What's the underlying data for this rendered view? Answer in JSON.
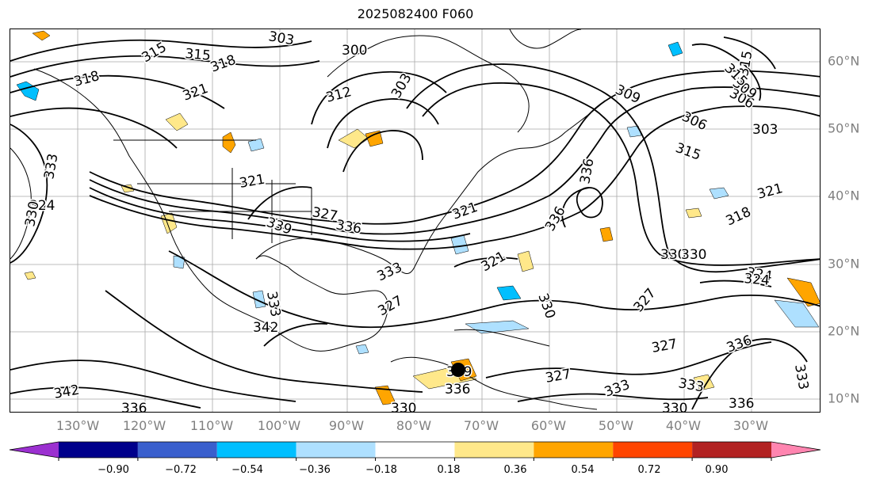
{
  "title": "2025082400 F060",
  "lon_labels": [
    "130°W",
    "120°W",
    "110°W",
    "100°W",
    "90°W",
    "80°W",
    "70°W",
    "60°W",
    "50°W",
    "40°W",
    "30°W"
  ],
  "lat_labels": [
    "60°N",
    "50°N",
    "40°N",
    "30°N",
    "20°N",
    "10°N"
  ],
  "colorbar": {
    "ticks": [
      "−0.90",
      "−0.72",
      "−0.54",
      "−0.36",
      "−0.18",
      "0.18",
      "0.36",
      "0.54",
      "0.72",
      "0.90"
    ],
    "colors": [
      "#9b30d0",
      "#00008b",
      "#3a5fcd",
      "#00bfff",
      "#aee0ff",
      "#ffffff",
      "#ffe88a",
      "#ffa500",
      "#ff4500",
      "#b22222",
      "#ff85b0"
    ]
  },
  "contour_labels": [
    "303",
    "300",
    "315",
    "318",
    "315",
    "318",
    "321",
    "312",
    "303",
    "315",
    "309",
    "306",
    "303",
    "306",
    "309",
    "315",
    "315",
    "321",
    "324",
    "321",
    "327",
    "327",
    "330",
    "336",
    "321",
    "324",
    "318",
    "321",
    "333",
    "330",
    "330",
    "327",
    "324",
    "333",
    "342",
    "339",
    "342",
    "336",
    "327",
    "330",
    "333",
    "336",
    "327",
    "333",
    "336",
    "336",
    "339",
    "333",
    "336",
    "330",
    "333",
    "330",
    "336"
  ],
  "marker": {
    "name": "storm-center",
    "lon": -75,
    "lat": 14.5
  }
}
